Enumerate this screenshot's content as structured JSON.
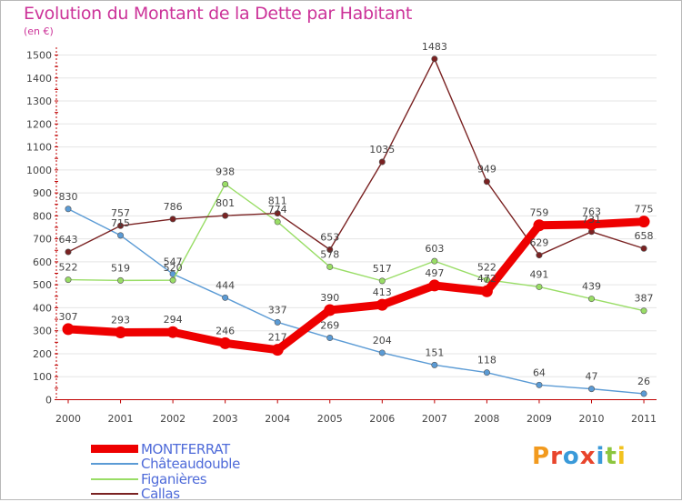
{
  "title": "Evolution du Montant de la Dette par Habitant",
  "unit_label": "(en €)",
  "logo_text": "Proxiti",
  "colors": {
    "title": "#cc3399",
    "axis": "#c00000",
    "grid": "#e5e5e5",
    "labels": "#444444",
    "legend_text": "#4f6bd9"
  },
  "chart_data": {
    "type": "line",
    "title": "Evolution du Montant de la Dette par Habitant",
    "ylabel": "(en €)",
    "xlabel": "",
    "ylim": [
      0,
      1500
    ],
    "yticks": [
      0,
      100,
      200,
      300,
      400,
      500,
      600,
      700,
      800,
      900,
      1000,
      1100,
      1200,
      1300,
      1400,
      1500
    ],
    "grid": true,
    "legend_position": "bottom-left",
    "x": [
      "2000",
      "2001",
      "2002",
      "2003",
      "2004",
      "2005",
      "2006",
      "2007",
      "2008",
      "2009",
      "2010",
      "2011"
    ],
    "series": [
      {
        "name": "MONTFERRAT",
        "color": "#ee0000",
        "values": [
          307,
          293,
          294,
          246,
          217,
          390,
          413,
          497,
          472,
          759,
          763,
          775
        ]
      },
      {
        "name": "Châteaudouble",
        "color": "#5b9bd5",
        "values": [
          830,
          715,
          547,
          444,
          337,
          269,
          204,
          151,
          118,
          64,
          47,
          26
        ]
      },
      {
        "name": "Figanières",
        "color": "#99dd66",
        "values": [
          522,
          519,
          520,
          938,
          774,
          578,
          517,
          603,
          522,
          491,
          439,
          387
        ]
      },
      {
        "name": "Callas",
        "color": "#7a2222",
        "values": [
          643,
          757,
          786,
          801,
          811,
          653,
          1035,
          1483,
          949,
          629,
          731,
          658
        ]
      }
    ]
  }
}
